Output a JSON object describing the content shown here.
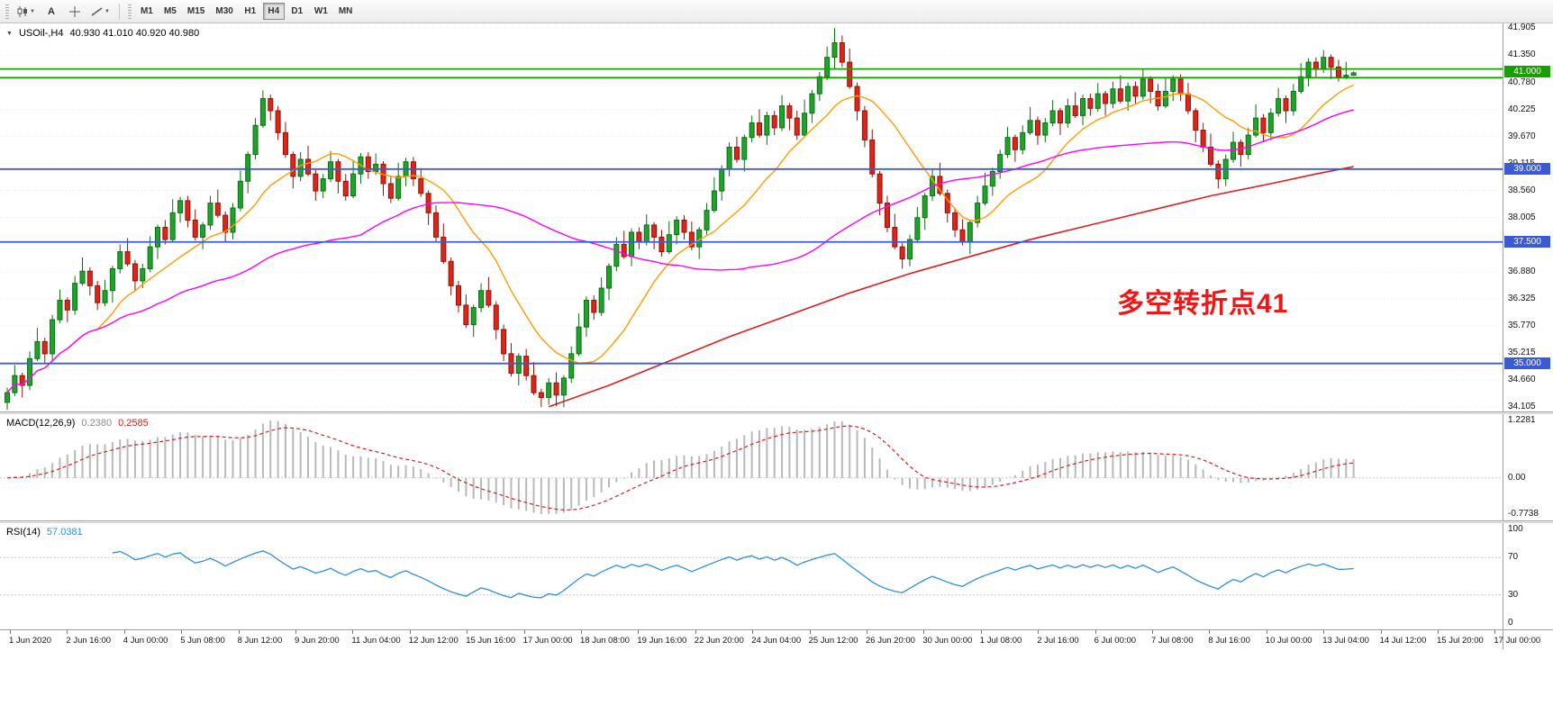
{
  "toolbar": {
    "text_tool_label": "A",
    "timeframes": [
      "M1",
      "M5",
      "M15",
      "M30",
      "H1",
      "H4",
      "D1",
      "W1",
      "MN"
    ],
    "active_timeframe": "H4"
  },
  "header": {
    "collapse_glyph": "▼",
    "symbol_period": "USOil-,H4",
    "ohlc_values": "40.930 41.010 40.920 40.980"
  },
  "macd_panel": {
    "label": "MACD(12,26,9)",
    "main_value": "0.2380",
    "signal_value": "0.2585"
  },
  "rsi_panel": {
    "label": "RSI(14)",
    "value": "57.0381"
  },
  "annotation": {
    "text": "多空转折点41",
    "color": "#f21515"
  },
  "chart_data": {
    "type": "candlestick",
    "title": "USOil- H4 candlestick chart with MA lines, MACD and RSI",
    "symbol": "USOil-",
    "timeframe": "H4",
    "y_range": [
      34.105,
      41.905
    ],
    "price_axis_ticks": [
      "41.905",
      "41.350",
      "40.780",
      "40.225",
      "39.670",
      "39.115",
      "38.560",
      "38.005",
      "36.880",
      "36.325",
      "35.770",
      "35.215",
      "34.660",
      "34.105"
    ],
    "price_badges": [
      {
        "label": "41.000",
        "value": 41.0,
        "color": "#18a000"
      },
      {
        "label": "39.000",
        "value": 39.0,
        "color": "#3b5bd6"
      },
      {
        "label": "37.500",
        "value": 37.5,
        "color": "#3b5bd6"
      },
      {
        "label": "35.000",
        "value": 35.0,
        "color": "#3b5bd6"
      }
    ],
    "hlines": [
      {
        "value": 41.06,
        "color": "#18a000"
      },
      {
        "value": 40.88,
        "color": "#18a000"
      },
      {
        "value": 39.0,
        "color": "#3b5bd6"
      },
      {
        "value": 37.5,
        "color": "#3b5bd6"
      },
      {
        "value": 35.0,
        "color": "#3b5bd6"
      }
    ],
    "x_labels": [
      "1 Jun 2020",
      "2 Jun 16:00",
      "4 Jun 00:00",
      "5 Jun 08:00",
      "8 Jun 12:00",
      "9 Jun 20:00",
      "11 Jun 04:00",
      "12 Jun 12:00",
      "15 Jun 16:00",
      "17 Jun 00:00",
      "18 Jun 08:00",
      "19 Jun 16:00",
      "22 Jun 20:00",
      "24 Jun 04:00",
      "25 Jun 12:00",
      "26 Jun 20:00",
      "30 Jun 00:00",
      "1 Jul 08:00",
      "2 Jul 16:00",
      "6 Jul 00:00",
      "7 Jul 08:00",
      "8 Jul 16:00",
      "10 Jul 00:00",
      "13 Jul 04:00",
      "14 Jul 12:00",
      "15 Jul 20:00",
      "17 Jul 00:00"
    ],
    "open_first": 34.2,
    "closes": [
      34.4,
      34.75,
      34.55,
      35.1,
      35.45,
      35.2,
      35.9,
      36.3,
      36.1,
      36.65,
      36.9,
      36.6,
      36.25,
      36.5,
      36.95,
      37.3,
      37.05,
      36.7,
      36.95,
      37.4,
      37.8,
      37.55,
      38.1,
      38.35,
      37.95,
      37.6,
      37.85,
      38.3,
      38.05,
      37.7,
      38.2,
      38.75,
      39.3,
      39.9,
      40.45,
      40.2,
      39.75,
      39.3,
      38.85,
      39.2,
      38.9,
      38.55,
      38.8,
      39.15,
      38.75,
      38.45,
      38.9,
      39.25,
      38.95,
      39.1,
      38.7,
      38.4,
      38.85,
      39.15,
      38.8,
      38.5,
      38.1,
      37.6,
      37.1,
      36.6,
      36.2,
      35.8,
      36.15,
      36.5,
      36.2,
      35.7,
      35.2,
      34.8,
      35.15,
      34.75,
      34.4,
      34.3,
      34.6,
      34.35,
      34.7,
      35.2,
      35.75,
      36.3,
      36.05,
      36.55,
      37.0,
      37.45,
      37.2,
      37.7,
      37.5,
      37.85,
      37.6,
      37.3,
      37.65,
      37.95,
      37.7,
      37.4,
      37.75,
      38.15,
      38.55,
      39.0,
      39.45,
      39.2,
      39.65,
      39.95,
      39.7,
      40.1,
      39.85,
      40.3,
      40.05,
      39.7,
      40.15,
      40.55,
      40.9,
      41.3,
      41.6,
      41.2,
      40.7,
      40.2,
      39.6,
      38.9,
      38.3,
      37.8,
      37.4,
      37.15,
      37.55,
      38.0,
      38.45,
      38.85,
      38.5,
      38.1,
      37.75,
      37.5,
      37.9,
      38.3,
      38.65,
      38.95,
      39.3,
      39.65,
      39.4,
      39.75,
      40.0,
      39.7,
      39.95,
      40.2,
      39.95,
      40.3,
      40.1,
      40.45,
      40.25,
      40.55,
      40.35,
      40.65,
      40.4,
      40.7,
      40.5,
      40.85,
      40.6,
      40.3,
      40.6,
      40.85,
      40.55,
      40.2,
      39.8,
      39.45,
      39.1,
      38.8,
      39.2,
      39.55,
      39.3,
      39.7,
      40.05,
      39.75,
      40.15,
      40.45,
      40.2,
      40.6,
      40.9,
      41.2,
      41.05,
      41.3,
      41.1,
      40.9,
      40.93,
      40.98
    ],
    "wick_high_cycle": [
      0.1,
      0.22,
      0.06,
      0.15,
      0.28,
      0.08
    ],
    "wick_low_cycle": [
      0.15,
      0.07,
      0.25,
      0.1,
      0.05,
      0.2
    ],
    "overrides": {
      "34": {
        "h": 40.62
      },
      "71": {
        "l": 34.1
      },
      "73": {
        "l": 34.12
      },
      "110": {
        "h": 41.9
      },
      "175": {
        "h": 41.45
      },
      "179": {
        "o": 40.93,
        "h": 41.01,
        "l": 40.92,
        "c": 40.98
      }
    },
    "moving_averages": [
      {
        "name": "fast",
        "period": 13,
        "color": "#ff9c00"
      },
      {
        "name": "mid",
        "period": 48,
        "color": "#ff00ff"
      }
    ],
    "long_ma": {
      "color": "#dc1f1f",
      "points": [
        [
          72,
          34.11
        ],
        [
          80,
          34.55
        ],
        [
          88,
          35.05
        ],
        [
          96,
          35.55
        ],
        [
          104,
          36.0
        ],
        [
          112,
          36.45
        ],
        [
          120,
          36.85
        ],
        [
          128,
          37.2
        ],
        [
          136,
          37.55
        ],
        [
          144,
          37.85
        ],
        [
          152,
          38.15
        ],
        [
          160,
          38.45
        ],
        [
          168,
          38.7
        ],
        [
          174,
          38.9
        ],
        [
          179,
          39.05
        ]
      ]
    },
    "indicators": {
      "macd": {
        "label": "MACD(12,26,9)",
        "fast": 12,
        "slow": 26,
        "signal_period": 9,
        "axis_ticks": [
          "1.2281",
          "0.00",
          "-0.7738"
        ],
        "range": [
          -0.7738,
          1.2281
        ]
      },
      "rsi": {
        "label": "RSI(14)",
        "period": 14,
        "levels": [
          70,
          30
        ],
        "axis_ticks": [
          "100",
          "70",
          "30",
          "0"
        ]
      }
    },
    "colors": {
      "up": "#1fa32a",
      "up_border": "#0b6e12",
      "down": "#e02418",
      "down_border": "#8e130a",
      "ma_fast": "#ff9c00",
      "ma_mid": "#ff00ff",
      "ma_long": "#dc1f1f",
      "macd_hist": "#b9b9b9",
      "macd_signal": "#d22020",
      "rsi": "#2f8fdd",
      "hline_green": "#18a000",
      "hline_blue": "#3b5bd6"
    }
  }
}
